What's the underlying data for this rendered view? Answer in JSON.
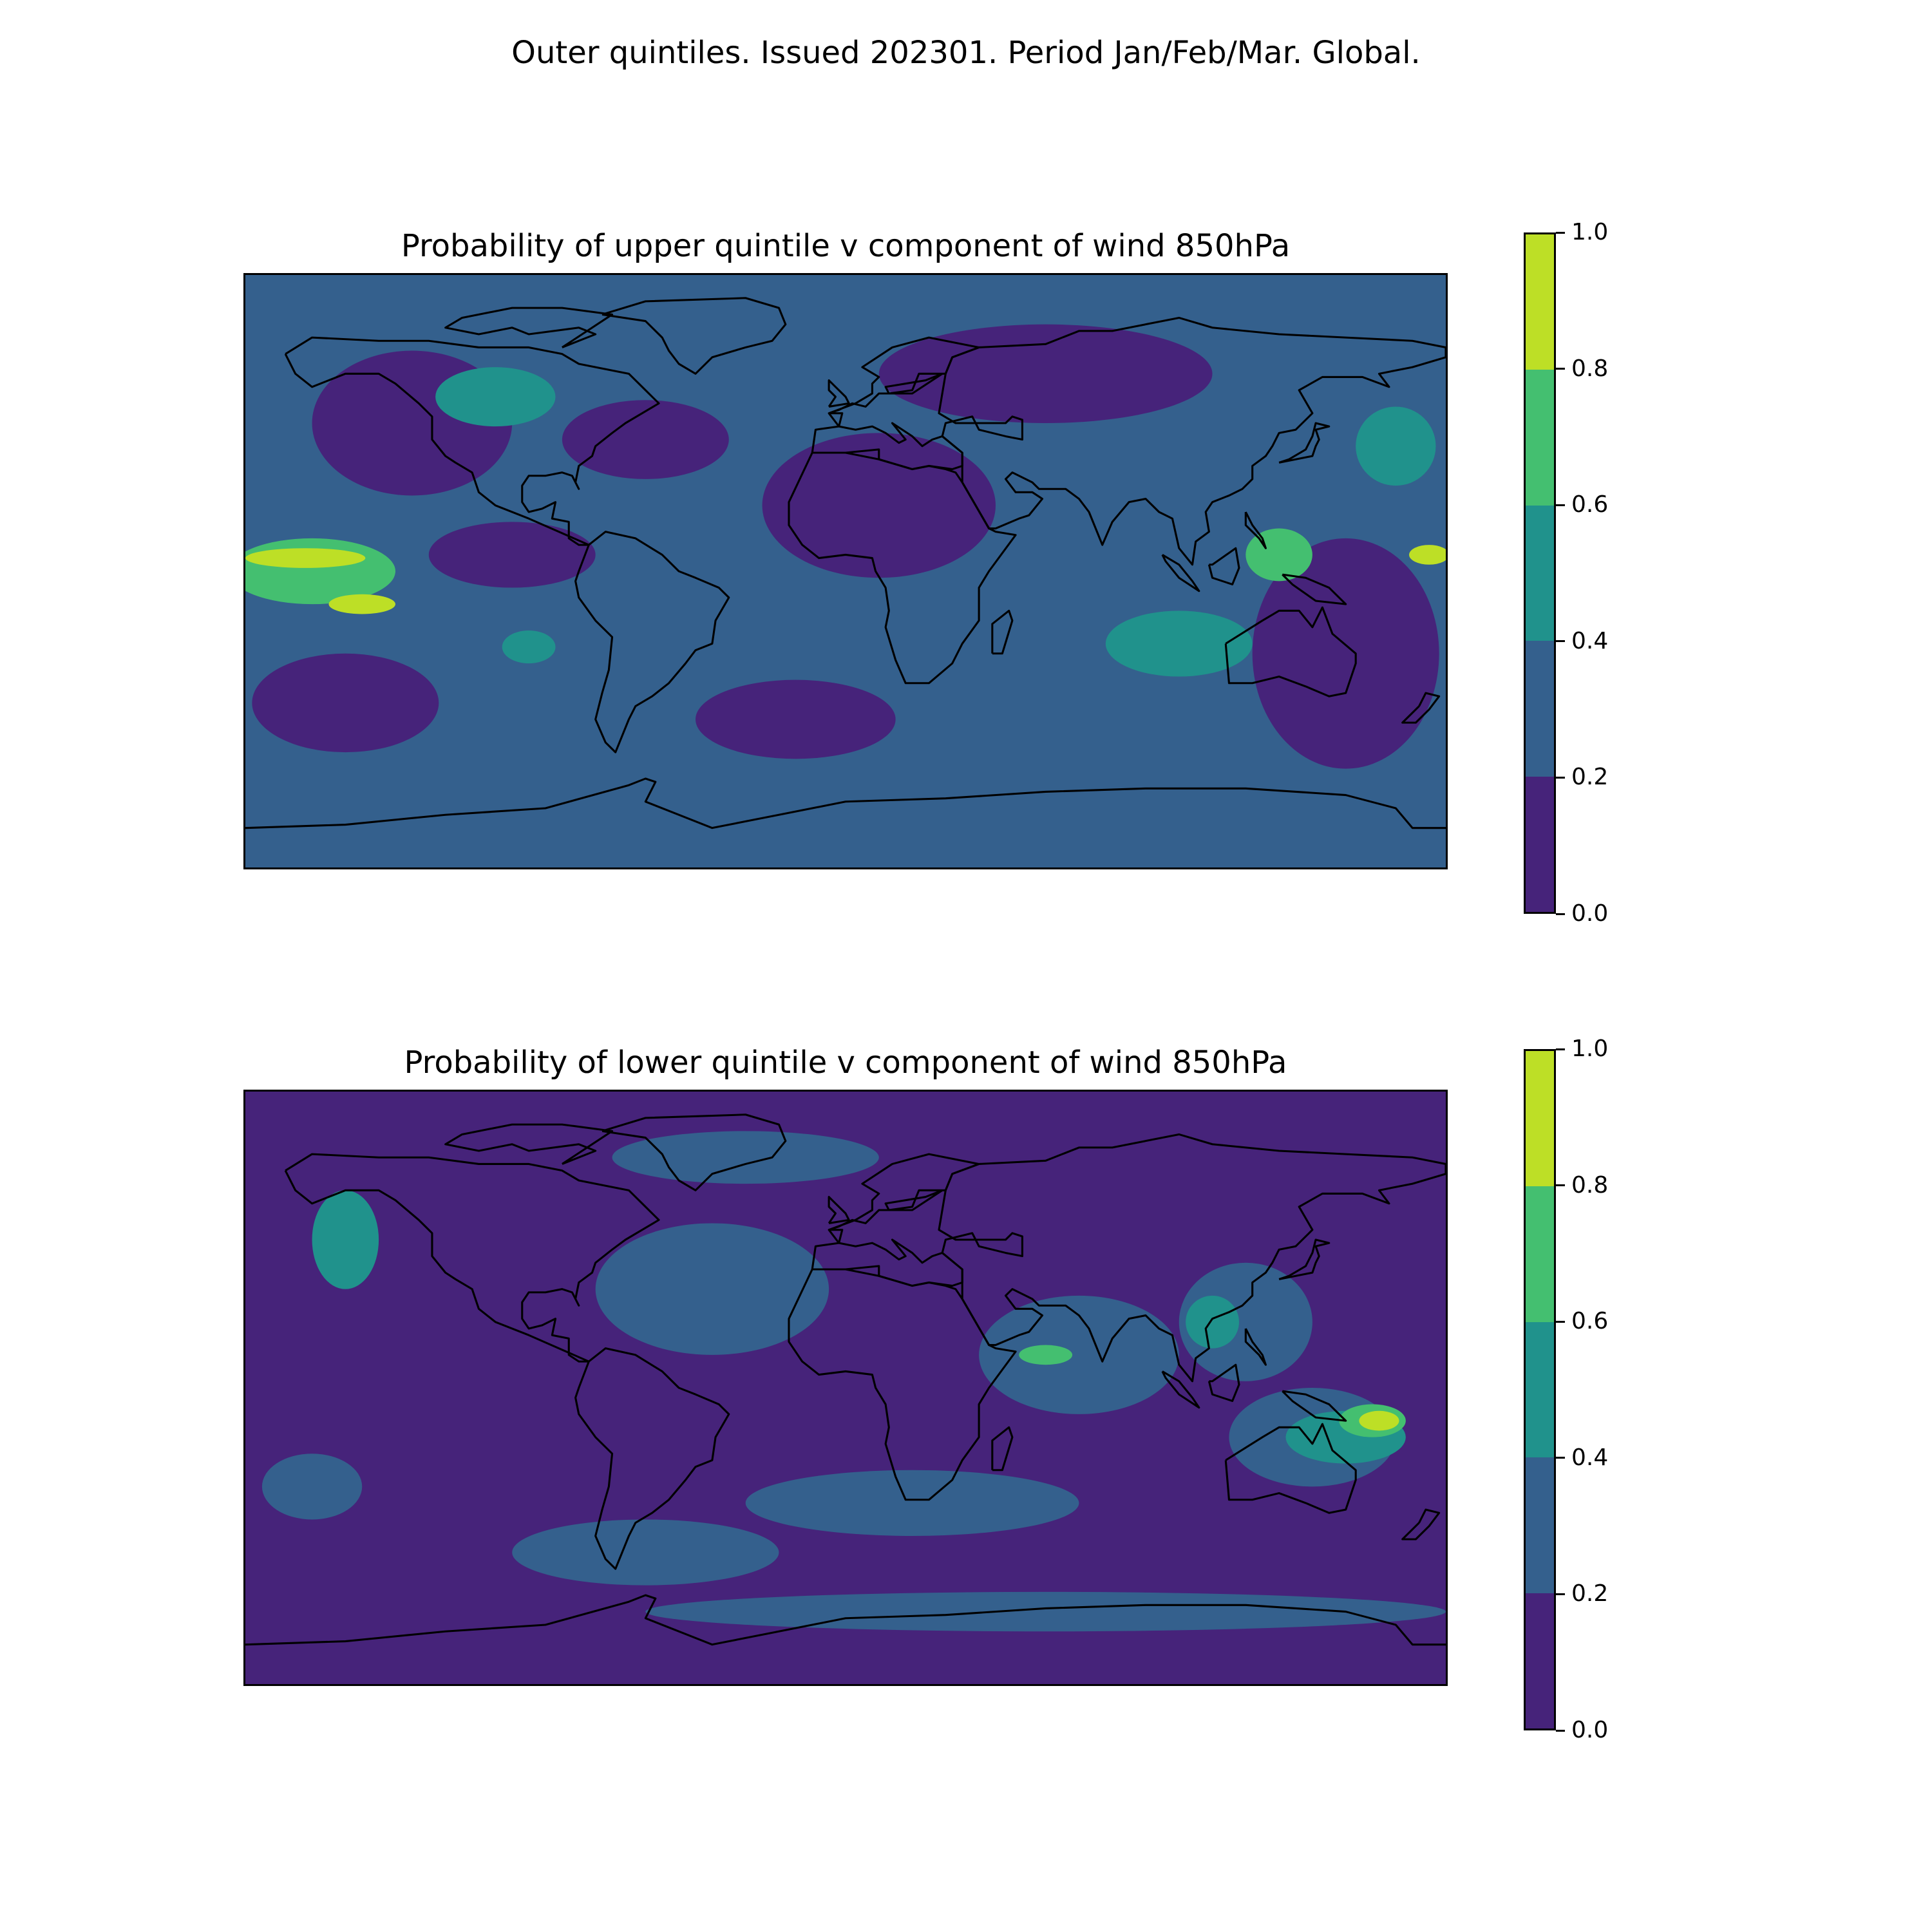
{
  "suptitle": "Outer quintiles. Issued 202301. Period Jan/Feb/Mar. Global.",
  "colorbar": {
    "levels": [
      0.0,
      0.2,
      0.4,
      0.6,
      0.8,
      1.0
    ],
    "tick_labels": [
      "0.0",
      "0.2",
      "0.4",
      "0.6",
      "0.8",
      "1.0"
    ],
    "colors": [
      "#46237a",
      "#34608d",
      "#20928c",
      "#44bf70",
      "#bddf26"
    ]
  },
  "coastline_color": "#000000",
  "panels": [
    {
      "title": "Probability of upper quintile v component of wind 850hPa",
      "background_level": 1,
      "regions": [
        {
          "level": 0,
          "lon": -130,
          "lat": 45,
          "rx": 30,
          "ry": 22
        },
        {
          "level": 0,
          "lon": -60,
          "lat": 40,
          "rx": 25,
          "ry": 12
        },
        {
          "level": 0,
          "lon": 10,
          "lat": 20,
          "rx": 35,
          "ry": 22
        },
        {
          "level": 0,
          "lon": 60,
          "lat": 60,
          "rx": 50,
          "ry": 15
        },
        {
          "level": 0,
          "lon": 150,
          "lat": -25,
          "rx": 28,
          "ry": 35
        },
        {
          "level": 0,
          "lon": -150,
          "lat": -40,
          "rx": 28,
          "ry": 15
        },
        {
          "level": 0,
          "lon": -15,
          "lat": -45,
          "rx": 30,
          "ry": 12
        },
        {
          "level": 0,
          "lon": -100,
          "lat": 5,
          "rx": 25,
          "ry": 10
        },
        {
          "level": 2,
          "lon": -105,
          "lat": 53,
          "rx": 18,
          "ry": 9
        },
        {
          "level": 2,
          "lon": 100,
          "lat": -22,
          "rx": 22,
          "ry": 10
        },
        {
          "level": 2,
          "lon": -95,
          "lat": -23,
          "rx": 8,
          "ry": 5
        },
        {
          "level": 2,
          "lon": 165,
          "lat": 38,
          "rx": 12,
          "ry": 12
        },
        {
          "level": 3,
          "lon": -160,
          "lat": 0,
          "rx": 25,
          "ry": 10
        },
        {
          "level": 3,
          "lon": 130,
          "lat": 5,
          "rx": 10,
          "ry": 8
        },
        {
          "level": 4,
          "lon": -162,
          "lat": 4,
          "rx": 18,
          "ry": 3
        },
        {
          "level": 4,
          "lon": -145,
          "lat": -10,
          "rx": 10,
          "ry": 3
        },
        {
          "level": 4,
          "lon": 175,
          "lat": 5,
          "rx": 6,
          "ry": 3
        }
      ]
    },
    {
      "title": "Probability of lower quintile v component of wind 850hPa",
      "background_level": 0,
      "regions": [
        {
          "level": 1,
          "lon": -40,
          "lat": 30,
          "rx": 35,
          "ry": 20
        },
        {
          "level": 1,
          "lon": 70,
          "lat": 10,
          "rx": 30,
          "ry": 18
        },
        {
          "level": 1,
          "lon": 120,
          "lat": 20,
          "rx": 20,
          "ry": 18
        },
        {
          "level": 1,
          "lon": 20,
          "lat": -35,
          "rx": 50,
          "ry": 10
        },
        {
          "level": 1,
          "lon": -60,
          "lat": -50,
          "rx": 40,
          "ry": 10
        },
        {
          "level": 1,
          "lon": -160,
          "lat": -30,
          "rx": 15,
          "ry": 10
        },
        {
          "level": 1,
          "lon": 140,
          "lat": -15,
          "rx": 25,
          "ry": 15
        },
        {
          "level": 1,
          "lon": -30,
          "lat": 70,
          "rx": 40,
          "ry": 8
        },
        {
          "level": 1,
          "lon": 60,
          "lat": -68,
          "rx": 120,
          "ry": 6
        },
        {
          "level": 2,
          "lon": -150,
          "lat": 45,
          "rx": 10,
          "ry": 15
        },
        {
          "level": 2,
          "lon": 150,
          "lat": -15,
          "rx": 18,
          "ry": 8
        },
        {
          "level": 2,
          "lon": 110,
          "lat": 20,
          "rx": 8,
          "ry": 8
        },
        {
          "level": 3,
          "lon": 158,
          "lat": -10,
          "rx": 10,
          "ry": 5
        },
        {
          "level": 3,
          "lon": 60,
          "lat": 10,
          "rx": 8,
          "ry": 3
        },
        {
          "level": 4,
          "lon": 160,
          "lat": -10,
          "rx": 6,
          "ry": 3
        }
      ]
    }
  ]
}
